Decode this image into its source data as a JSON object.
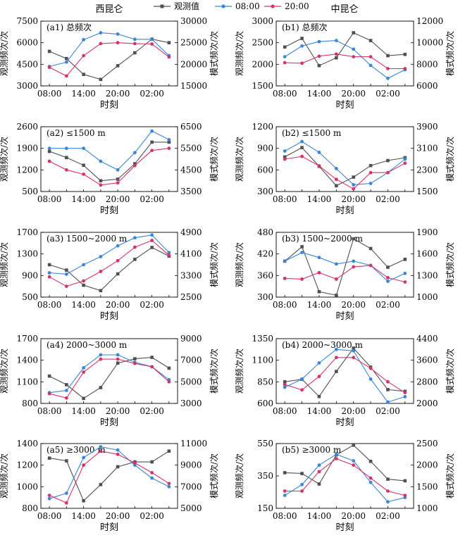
{
  "figure": {
    "col_titles": [
      "西昆仑",
      "中昆仑"
    ],
    "legend": [
      {
        "label": "观测值",
        "color": "#505050",
        "marker": "square"
      },
      {
        "label": "08:00",
        "color": "#3a86d8",
        "marker": "circle"
      },
      {
        "label": "20:00",
        "color": "#d6336c",
        "marker": "circle"
      }
    ]
  },
  "chart_data": [
    {
      "type": "line",
      "panel": "(a1)",
      "title": "(a1) 总频次",
      "xlabel": "时刻",
      "ylabel": "观测频次/次",
      "y2label": "模式频次/次",
      "categories": [
        "08:00",
        "11:00",
        "14:00",
        "17:00",
        "20:00",
        "23:00",
        "02:00",
        "05:00"
      ],
      "xticks": [
        "08:00",
        "14:00",
        "20:00",
        "02:00"
      ],
      "ylim": [
        3000,
        7500
      ],
      "yticks": [
        3000,
        4500,
        6000,
        7500
      ],
      "y2lim": [
        15000,
        30000
      ],
      "y2ticks": [
        15000,
        20000,
        25000,
        30000
      ],
      "series": [
        {
          "name": "观测值",
          "axis": "left",
          "values": [
            5400,
            4900,
            3800,
            3450,
            4400,
            5300,
            6250,
            6000
          ]
        },
        {
          "name": "08:00",
          "axis": "right",
          "values": [
            19500,
            20500,
            25700,
            27300,
            27000,
            25800,
            25800,
            22000
          ]
        },
        {
          "name": "20:00",
          "axis": "right",
          "values": [
            19300,
            17300,
            22000,
            24800,
            25000,
            24800,
            24700,
            21700
          ]
        }
      ]
    },
    {
      "type": "line",
      "panel": "(b1)",
      "title": "(b1) 总频次",
      "xlabel": "时刻",
      "ylabel": "观测频次/次",
      "y2label": "模式频次/次",
      "categories": [
        "08:00",
        "11:00",
        "14:00",
        "17:00",
        "20:00",
        "23:00",
        "02:00",
        "05:00"
      ],
      "xticks": [
        "08:00",
        "14:00",
        "20:00",
        "02:00"
      ],
      "ylim": [
        1500,
        3000
      ],
      "yticks": [
        1500,
        2000,
        2500,
        3000
      ],
      "y2lim": [
        6000,
        12000
      ],
      "y2ticks": [
        6000,
        8000,
        10000,
        12000
      ],
      "series": [
        {
          "name": "观测值",
          "axis": "left",
          "values": [
            2400,
            2600,
            1970,
            2150,
            2730,
            2550,
            2200,
            2230
          ]
        },
        {
          "name": "08:00",
          "axis": "right",
          "values": [
            8700,
            9700,
            10100,
            10200,
            9400,
            7900,
            6700,
            7500
          ]
        },
        {
          "name": "20:00",
          "axis": "right",
          "values": [
            8150,
            8100,
            8750,
            8950,
            8700,
            8700,
            7600,
            7600
          ]
        }
      ]
    },
    {
      "type": "line",
      "panel": "(a2)",
      "title": "(a2) ≤1500 m",
      "xlabel": "时刻",
      "ylabel": "观测频次/次",
      "y2label": "模式频次/次",
      "categories": [
        "08:00",
        "11:00",
        "14:00",
        "17:00",
        "20:00",
        "23:00",
        "02:00",
        "05:00"
      ],
      "xticks": [
        "08:00",
        "14:00",
        "20:00",
        "02:00"
      ],
      "ylim": [
        500,
        2600
      ],
      "yticks": [
        500,
        1200,
        1900,
        2600
      ],
      "y2lim": [
        3500,
        6500
      ],
      "y2ticks": [
        3500,
        4500,
        5500,
        6500
      ],
      "series": [
        {
          "name": "观测值",
          "axis": "left",
          "values": [
            1800,
            1600,
            1350,
            850,
            900,
            1400,
            2100,
            2100
          ]
        },
        {
          "name": "08:00",
          "axis": "right",
          "values": [
            5500,
            5500,
            5500,
            4900,
            4500,
            5300,
            6300,
            5900
          ]
        },
        {
          "name": "20:00",
          "axis": "right",
          "values": [
            4900,
            4500,
            4300,
            3800,
            3900,
            4700,
            5400,
            5500
          ]
        }
      ]
    },
    {
      "type": "line",
      "panel": "(b2)",
      "title": "(b2) ≤1500 m",
      "xlabel": "时刻",
      "ylabel": "观测频次/次",
      "y2label": "模式频次/次",
      "categories": [
        "08:00",
        "11:00",
        "14:00",
        "17:00",
        "20:00",
        "23:00",
        "02:00",
        "05:00"
      ],
      "xticks": [
        "08:00",
        "14:00",
        "20:00",
        "02:00"
      ],
      "ylim": [
        300,
        1200
      ],
      "yticks": [
        300,
        600,
        900,
        1200
      ],
      "y2lim": [
        1500,
        3900
      ],
      "y2ticks": [
        1500,
        2300,
        3100,
        3900
      ],
      "series": [
        {
          "name": "观测值",
          "axis": "left",
          "values": [
            780,
            910,
            650,
            380,
            500,
            660,
            730,
            770
          ]
        },
        {
          "name": "08:00",
          "axis": "right",
          "values": [
            3000,
            3350,
            2950,
            2350,
            1750,
            1800,
            2200,
            2700
          ]
        },
        {
          "name": "20:00",
          "axis": "right",
          "values": [
            2700,
            2800,
            2450,
            1950,
            1600,
            2200,
            2200,
            2550
          ]
        }
      ]
    },
    {
      "type": "line",
      "panel": "(a3)",
      "title": "(a3) 1500~2000 m",
      "xlabel": "时刻",
      "ylabel": "观测频次/次",
      "y2label": "模式频次/次",
      "categories": [
        "08:00",
        "11:00",
        "14:00",
        "17:00",
        "20:00",
        "23:00",
        "02:00",
        "05:00"
      ],
      "xticks": [
        "08:00",
        "14:00",
        "20:00",
        "02:00"
      ],
      "ylim": [
        500,
        1700
      ],
      "yticks": [
        500,
        900,
        1300,
        1700
      ],
      "y2lim": [
        2500,
        4900
      ],
      "y2ticks": [
        2500,
        3300,
        4100,
        4900
      ],
      "series": [
        {
          "name": "观测值",
          "axis": "left",
          "values": [
            1100,
            1000,
            720,
            620,
            930,
            1200,
            1420,
            1260
          ]
        },
        {
          "name": "08:00",
          "axis": "right",
          "values": [
            3400,
            3350,
            3700,
            4000,
            4400,
            4700,
            4800,
            4150
          ]
        },
        {
          "name": "20:00",
          "axis": "right",
          "values": [
            3250,
            2900,
            3100,
            3450,
            3850,
            4350,
            4600,
            4050
          ]
        }
      ]
    },
    {
      "type": "line",
      "panel": "(b3)",
      "title": "(b3) 1500~2000 m",
      "xlabel": "时刻",
      "ylabel": "观测频次/次",
      "y2label": "模式频次/次",
      "categories": [
        "08:00",
        "11:00",
        "14:00",
        "17:00",
        "20:00",
        "23:00",
        "02:00",
        "05:00"
      ],
      "xticks": [
        "08:00",
        "14:00",
        "20:00",
        "02:00"
      ],
      "ylim": [
        300,
        480
      ],
      "yticks": [
        300,
        360,
        420,
        480
      ],
      "y2lim": [
        1000,
        1900
      ],
      "y2ticks": [
        1000,
        1300,
        1600,
        1900
      ],
      "series": [
        {
          "name": "观测值",
          "axis": "left",
          "values": [
            400,
            440,
            315,
            305,
            462,
            435,
            383,
            405
          ]
        },
        {
          "name": "08:00",
          "axis": "right",
          "values": [
            1500,
            1620,
            1550,
            1460,
            1500,
            1440,
            1220,
            1330
          ]
        },
        {
          "name": "20:00",
          "axis": "right",
          "values": [
            1260,
            1250,
            1340,
            1250,
            1420,
            1440,
            1270,
            1210
          ]
        }
      ]
    },
    {
      "type": "line",
      "panel": "(a4)",
      "title": "(a4) 2000~3000 m",
      "xlabel": "时刻",
      "ylabel": "观测频次/次",
      "y2label": "模式频次/次",
      "categories": [
        "08:00",
        "11:00",
        "14:00",
        "17:00",
        "20:00",
        "23:00",
        "02:00",
        "05:00"
      ],
      "xticks": [
        "08:00",
        "14:00",
        "20:00",
        "02:00"
      ],
      "ylim": [
        800,
        1700
      ],
      "yticks": [
        800,
        1100,
        1400,
        1700
      ],
      "y2lim": [
        3000,
        9000
      ],
      "y2ticks": [
        3000,
        5000,
        7000,
        9000
      ],
      "series": [
        {
          "name": "观测值",
          "axis": "left",
          "values": [
            1180,
            1060,
            870,
            1020,
            1360,
            1420,
            1440,
            1290
          ]
        },
        {
          "name": "08:00",
          "axis": "right",
          "values": [
            4000,
            4200,
            6300,
            7500,
            7500,
            6800,
            6400,
            5200
          ]
        },
        {
          "name": "20:00",
          "axis": "right",
          "values": [
            3900,
            3500,
            5900,
            7100,
            7100,
            6700,
            6400,
            5000
          ]
        }
      ]
    },
    {
      "type": "line",
      "panel": "(b4)",
      "title": "(b4) 2000~3000 m",
      "xlabel": "时刻",
      "ylabel": "观测频次/次",
      "y2label": "模式频次/次",
      "categories": [
        "08:00",
        "11:00",
        "14:00",
        "17:00",
        "20:00",
        "23:00",
        "02:00",
        "05:00"
      ],
      "xticks": [
        "08:00",
        "14:00",
        "20:00",
        "02:00"
      ],
      "ylim": [
        600,
        1350
      ],
      "yticks": [
        600,
        850,
        1100,
        1350
      ],
      "y2lim": [
        2000,
        4400
      ],
      "y2ticks": [
        2000,
        2800,
        3600,
        4400
      ],
      "series": [
        {
          "name": "观测值",
          "axis": "left",
          "values": [
            850,
            880,
            680,
            970,
            1240,
            1020,
            760,
            740
          ]
        },
        {
          "name": "08:00",
          "axis": "right",
          "values": [
            2600,
            2900,
            3500,
            4000,
            3950,
            2900,
            2050,
            2250
          ]
        },
        {
          "name": "20:00",
          "axis": "right",
          "values": [
            2700,
            2500,
            3000,
            3700,
            3700,
            3300,
            2800,
            2400
          ]
        }
      ]
    },
    {
      "type": "line",
      "panel": "(a5)",
      "title": "(a5) ≥3000 m",
      "xlabel": "时刻",
      "ylabel": "观测频次/次",
      "y2label": "模式频次/次",
      "categories": [
        "08:00",
        "11:00",
        "14:00",
        "17:00",
        "20:00",
        "23:00",
        "02:00",
        "05:00"
      ],
      "xticks": [
        "08:00",
        "14:00",
        "20:00",
        "02:00"
      ],
      "ylim": [
        800,
        1400
      ],
      "yticks": [
        800,
        1000,
        1200,
        1400
      ],
      "y2lim": [
        5000,
        11000
      ],
      "y2ticks": [
        5000,
        7000,
        9000,
        11000
      ],
      "series": [
        {
          "name": "观测值",
          "axis": "left",
          "values": [
            1265,
            1240,
            870,
            1020,
            1185,
            1230,
            1230,
            1330
          ]
        },
        {
          "name": "08:00",
          "axis": "right",
          "values": [
            5900,
            6400,
            9700,
            10700,
            10400,
            9000,
            7800,
            7000
          ]
        },
        {
          "name": "20:00",
          "axis": "right",
          "values": [
            6200,
            5500,
            9000,
            10300,
            10000,
            9200,
            8300,
            7300
          ]
        }
      ]
    },
    {
      "type": "line",
      "panel": "(b5)",
      "title": "(b5) ≥3000 m",
      "xlabel": "时刻",
      "ylabel": "观测频次/次",
      "y2label": "模式频次/次",
      "categories": [
        "08:00",
        "11:00",
        "14:00",
        "17:00",
        "20:00",
        "23:00",
        "02:00",
        "05:00"
      ],
      "xticks": [
        "08:00",
        "14:00",
        "20:00",
        "02:00"
      ],
      "ylim": [
        150,
        550
      ],
      "yticks": [
        150,
        350,
        550
      ],
      "y2lim": [
        1000,
        2500
      ],
      "y2ticks": [
        1000,
        1500,
        2000,
        2500
      ],
      "series": [
        {
          "name": "观测值",
          "axis": "left",
          "values": [
            370,
            365,
            300,
            480,
            540,
            440,
            330,
            320
          ]
        },
        {
          "name": "08:00",
          "axis": "right",
          "values": [
            1300,
            1550,
            2000,
            2250,
            2100,
            1600,
            1150,
            1250
          ]
        },
        {
          "name": "20:00",
          "axis": "right",
          "values": [
            1400,
            1400,
            1850,
            2150,
            2000,
            1700,
            1400,
            1300
          ]
        }
      ]
    }
  ]
}
